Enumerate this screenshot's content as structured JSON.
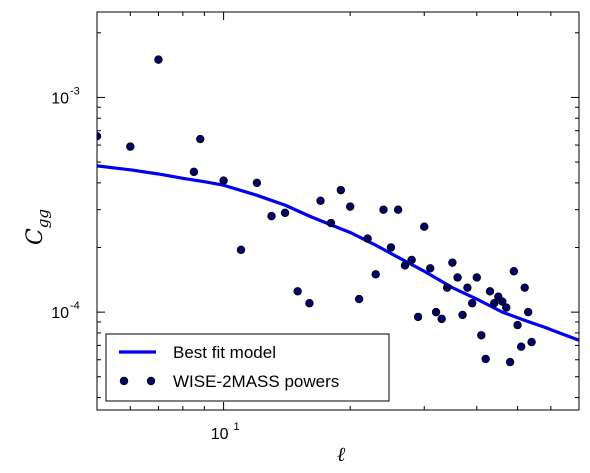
{
  "chart_data": {
    "type": "scatter",
    "x_scale": "log",
    "y_scale": "log",
    "xlim": [
      5.0,
      70
    ],
    "ylim": [
      3.5e-05,
      0.0025
    ],
    "grid": false,
    "legend_position": "bottom-left",
    "xlabel": "ℓ",
    "ylabel_base": "C",
    "ylabel_sub": "gg",
    "x_ticks": [
      {
        "value": 10,
        "base": "10",
        "exp": "1"
      }
    ],
    "y_ticks": [
      {
        "value": 0.001,
        "base": "10",
        "exp": "-3"
      },
      {
        "value": 0.0001,
        "base": "10",
        "exp": "-4"
      }
    ],
    "series": [
      {
        "name": "Best fit model",
        "kind": "line",
        "color": "#0000ee",
        "x": [
          5.0,
          6.0,
          7.0,
          8.0,
          9.0,
          10.0,
          12.0,
          14.0,
          16.0,
          18.0,
          20.0,
          23.0,
          26.0,
          30.0,
          35.0,
          40.0,
          46.0,
          52.0,
          58.0,
          64.0,
          70.0
        ],
        "y": [
          0.00048,
          0.00046,
          0.00044,
          0.00042,
          0.000405,
          0.00039,
          0.00035,
          0.000315,
          0.00028,
          0.000255,
          0.000235,
          0.000205,
          0.00018,
          0.000155,
          0.00013,
          0.000115,
          0.0001,
          9.15e-05,
          8.5e-05,
          7.9e-05,
          7.4e-05
        ]
      },
      {
        "name": "WISE-2MASS powers",
        "kind": "scatter",
        "color": "#000066",
        "edge_color": "#000000",
        "x": [
          5.0,
          6.0,
          7.0,
          8.5,
          8.8,
          10.0,
          11.0,
          12.0,
          13.0,
          14.0,
          15.0,
          16.0,
          17.0,
          18.0,
          19.0,
          20.0,
          21.0,
          22.0,
          23.0,
          24.0,
          25.0,
          26.0,
          27.0,
          28.0,
          29.0,
          30.0,
          31.0,
          32.0,
          33.0,
          34.0,
          35.0,
          36.0,
          37.0,
          38.0,
          39.0,
          40.0,
          41.0,
          42.0,
          43.0,
          44.0,
          45.0,
          46.0,
          47.0,
          48.0,
          49.0,
          50.0,
          51.0,
          52.0,
          53.0,
          54.0
        ],
        "y": [
          0.00066,
          0.00059,
          0.0015,
          0.00045,
          0.00064,
          0.00041,
          0.000195,
          0.0004,
          0.00028,
          0.00029,
          0.000125,
          0.00011,
          0.00033,
          0.00026,
          0.00037,
          0.00031,
          0.000115,
          0.00022,
          0.00015,
          0.0003,
          0.0002,
          0.0003,
          0.000165,
          0.000175,
          9.5e-05,
          0.00025,
          0.00016,
          0.0001,
          9.3e-05,
          0.00013,
          0.00017,
          0.000145,
          9.7e-05,
          0.00013,
          0.00011,
          0.000145,
          7.8e-05,
          6.05e-05,
          0.000125,
          0.00011,
          0.000118,
          0.000112,
          0.000105,
          5.85e-05,
          0.000155,
          8.7e-05,
          6.9e-05,
          0.00013,
          0.0001,
          7.25e-05
        ]
      }
    ]
  }
}
